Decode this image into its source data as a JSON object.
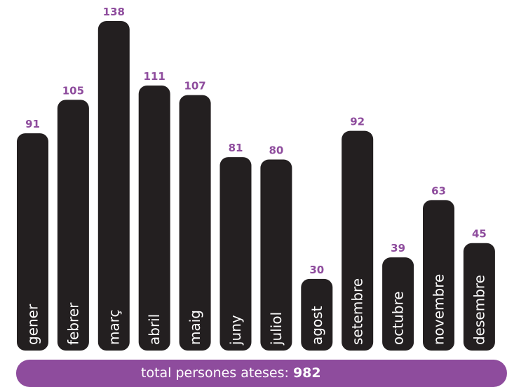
{
  "colors": {
    "bar": "#231f20",
    "value_label": "#8e4c9d",
    "month_label": "#ffffff",
    "total_band": "#8e4c9d"
  },
  "chart_data": {
    "type": "bar",
    "title": "",
    "xlabel": "",
    "ylabel": "",
    "categories": [
      "gener",
      "febrer",
      "març",
      "abril",
      "maig",
      "juny",
      "juliol",
      "agost",
      "setembre",
      "octubre",
      "novembre",
      "desembre"
    ],
    "values": [
      91,
      105,
      138,
      111,
      107,
      81,
      80,
      30,
      92,
      39,
      63,
      45
    ],
    "value_labels": [
      "91",
      "105",
      "138",
      "111",
      "107",
      "81",
      "80",
      "30",
      "92",
      "39",
      "63",
      "45"
    ],
    "ylim": [
      0,
      138
    ],
    "grid": false,
    "legend": "none"
  },
  "total": {
    "label": "total persones ateses:",
    "value": "982"
  }
}
